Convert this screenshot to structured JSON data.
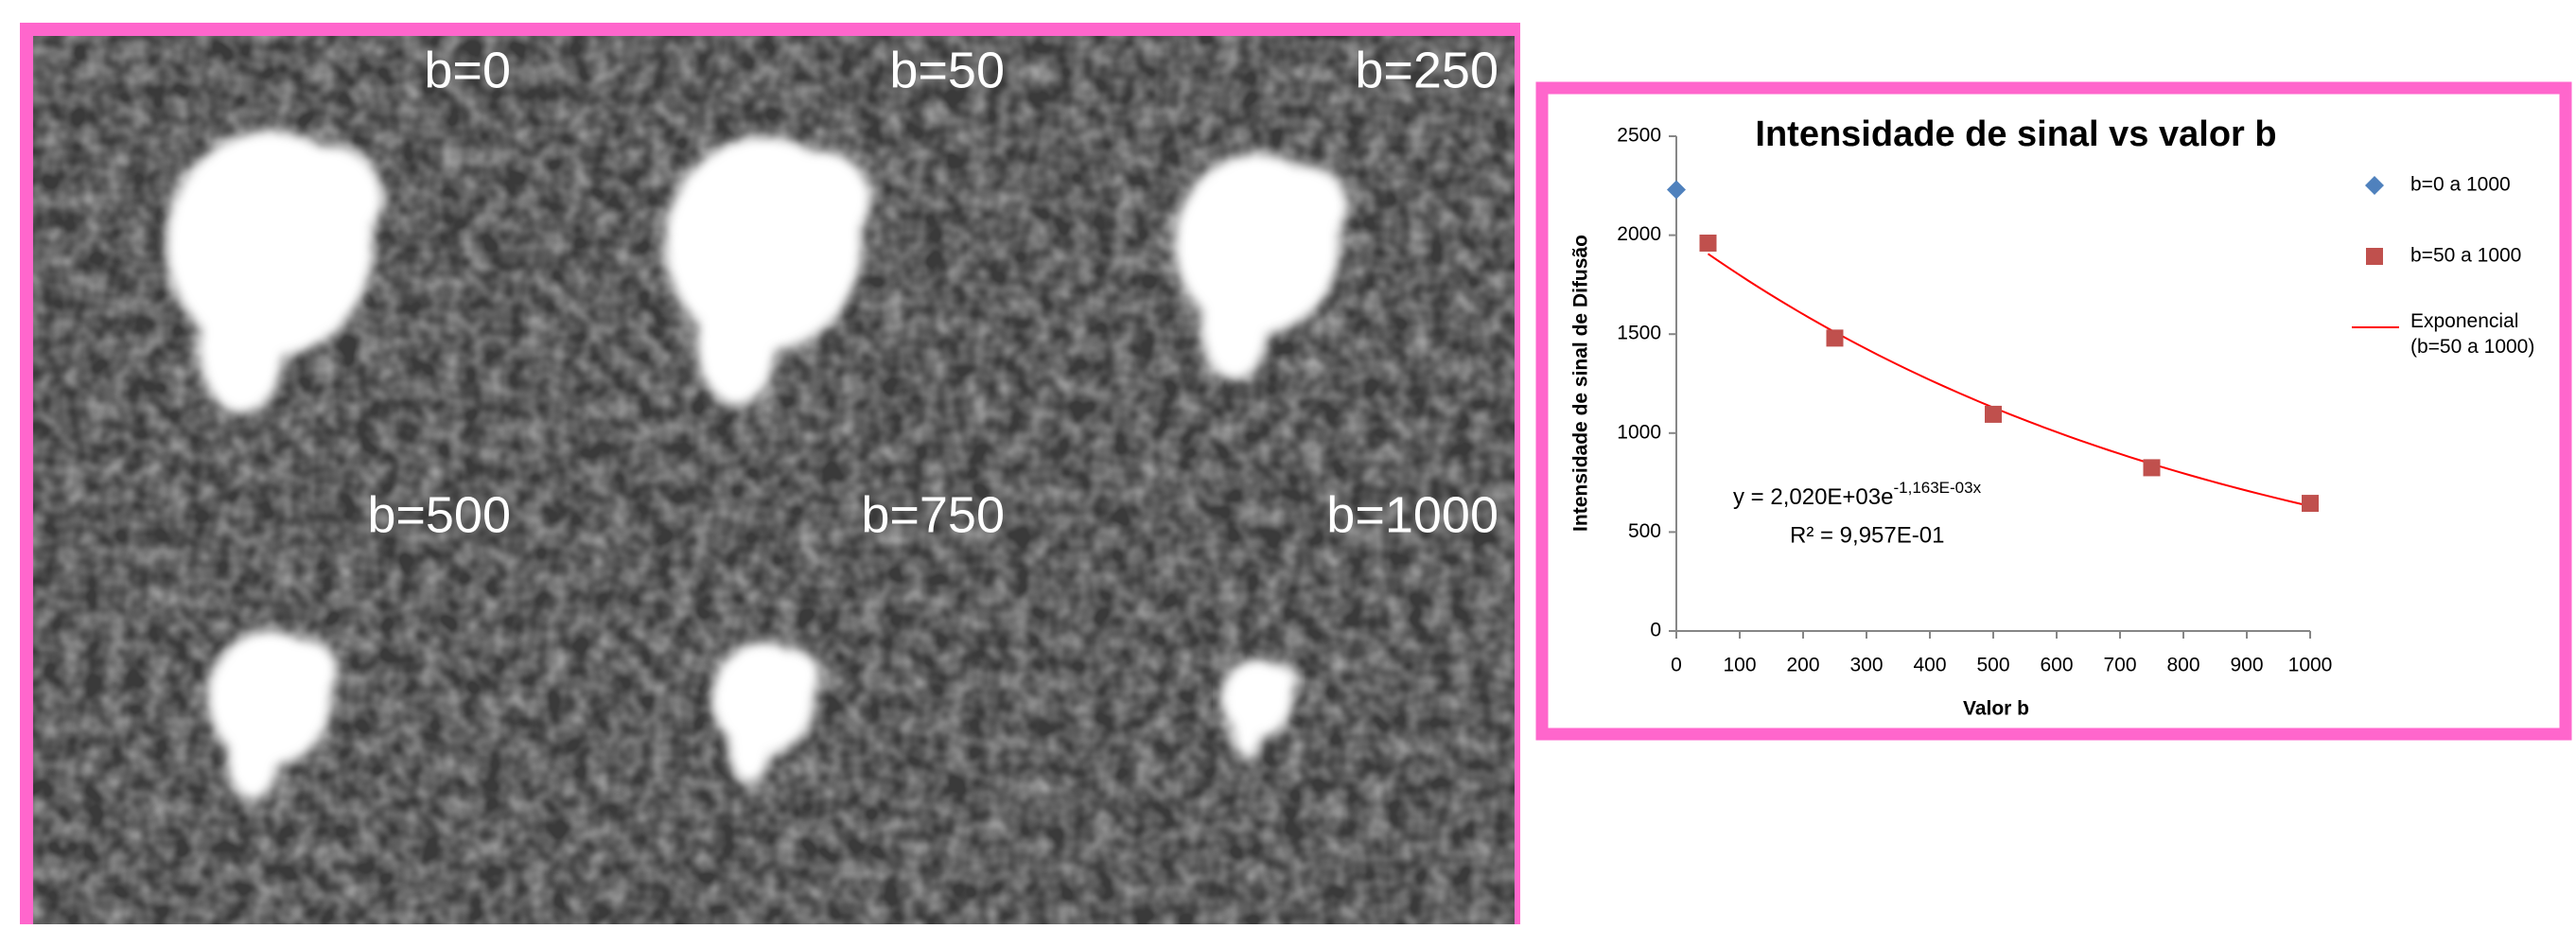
{
  "panel_labels": [
    "b=0",
    "b=50",
    "b=250",
    "b=500",
    "b=750",
    "b=1000"
  ],
  "chart_data": {
    "type": "scatter",
    "title": "Intensidade de sinal vs valor b",
    "xlabel": "Valor b",
    "ylabel": "Intensidade de sinal  de Difusão",
    "xlim": [
      0,
      1000
    ],
    "xticks": [
      0,
      100,
      200,
      300,
      400,
      500,
      600,
      700,
      800,
      900,
      1000
    ],
    "ylim": [
      0,
      2500
    ],
    "yticks": [
      0,
      500,
      1000,
      1500,
      2000,
      2500
    ],
    "series": [
      {
        "name": "b=0 a 1000",
        "color": "#4f81bd",
        "marker": "diamond",
        "x": [
          0
        ],
        "values": [
          2230
        ]
      },
      {
        "name": "b=50 a 1000",
        "color": "#c0504d",
        "marker": "square",
        "x": [
          50,
          250,
          500,
          750,
          1000
        ],
        "values": [
          1960,
          1480,
          1095,
          825,
          645
        ]
      }
    ],
    "trendline": {
      "name": "Exponencial (b=50 a 1000)",
      "color": "#ff0000",
      "a": 2020,
      "k": -0.001163,
      "xrange": [
        50,
        1000
      ],
      "equation": "y = 2,020E+03e",
      "equation_exponent": "-1,163E-03x",
      "r_squared": "R² = 9,957E-01"
    }
  }
}
